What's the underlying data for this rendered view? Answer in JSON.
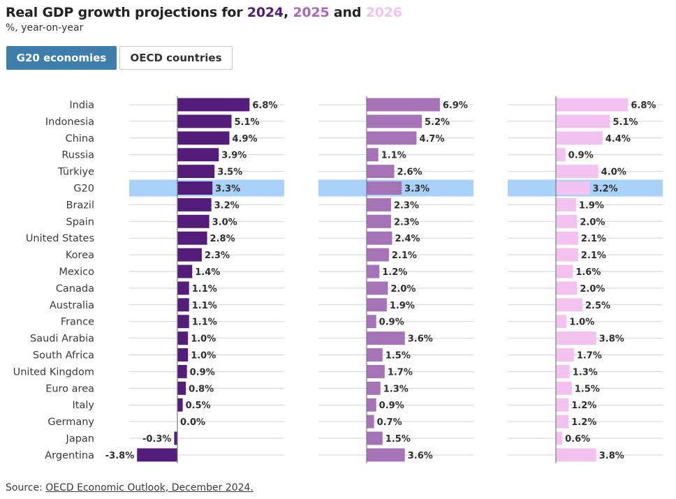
{
  "title": {
    "prefix": "Real GDP growth projections for ",
    "year1": "2024",
    "sep1": ", ",
    "year2": "2025",
    "sep2": " and ",
    "year3": "2026"
  },
  "subtitle": "%, year-on-year",
  "tabs": [
    {
      "label": "G20 economies",
      "active": true
    },
    {
      "label": "OECD countries",
      "active": false
    }
  ],
  "source": {
    "prefix": "Source: ",
    "link": "OECD Economic Outlook, December 2024."
  },
  "colors": {
    "y2024": "#541d7b",
    "y2025": "#a673b8",
    "y2026": "#f4c2f0",
    "highlight": "#a9d2fa",
    "gridline": "#c9d4de",
    "axis": "#7a7a7a"
  },
  "chart_data": {
    "type": "bar",
    "orientation": "horizontal",
    "highlight_category": "G20",
    "categories": [
      "India",
      "Indonesia",
      "China",
      "Russia",
      "Türkiye",
      "G20",
      "Brazil",
      "Spain",
      "United States",
      "Korea",
      "Mexico",
      "Canada",
      "Australia",
      "France",
      "Saudi Arabia",
      "South Africa",
      "United Kingdom",
      "Euro area",
      "Italy",
      "Germany",
      "Japan",
      "Argentina"
    ],
    "series": [
      {
        "name": "2024",
        "values": [
          6.8,
          5.1,
          4.9,
          3.9,
          3.5,
          3.3,
          3.2,
          3.0,
          2.8,
          2.3,
          1.4,
          1.1,
          1.1,
          1.1,
          1.0,
          1.0,
          0.9,
          0.8,
          0.5,
          0.0,
          -0.3,
          -3.8
        ]
      },
      {
        "name": "2025",
        "values": [
          6.9,
          5.2,
          4.7,
          1.1,
          2.6,
          3.3,
          2.3,
          2.3,
          2.4,
          2.1,
          1.2,
          2.0,
          1.9,
          0.9,
          3.6,
          1.5,
          1.7,
          1.3,
          0.9,
          0.7,
          1.5,
          3.6
        ]
      },
      {
        "name": "2026",
        "values": [
          6.8,
          5.1,
          4.4,
          0.9,
          4.0,
          3.2,
          1.9,
          2.0,
          2.1,
          2.1,
          1.6,
          2.0,
          2.5,
          1.0,
          3.8,
          1.7,
          1.3,
          1.5,
          1.2,
          1.2,
          0.6,
          3.8
        ]
      }
    ],
    "value_suffix": "%"
  }
}
